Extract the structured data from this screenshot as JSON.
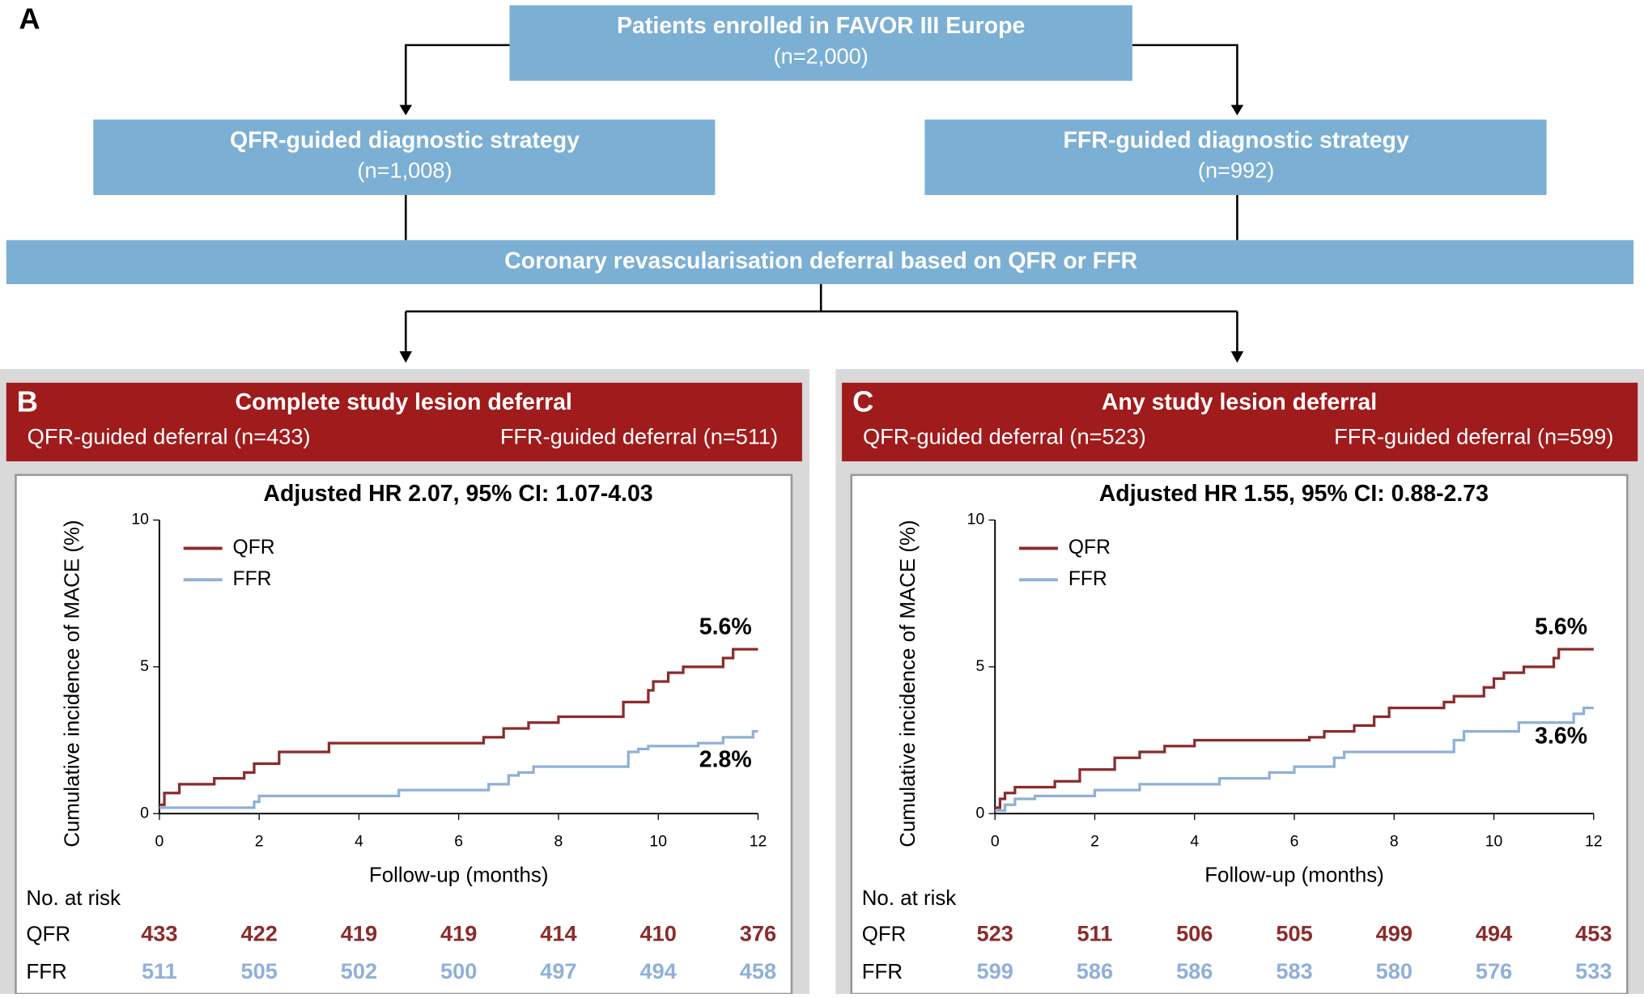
{
  "flowchart": {
    "label": "A",
    "root": {
      "title": "Patients enrolled in FAVOR III Europe",
      "subtitle": "(n=2,000)"
    },
    "left": {
      "title": "QFR-guided diagnostic strategy",
      "subtitle": "(n=1,008)"
    },
    "right": {
      "title": "FFR-guided diagnostic strategy",
      "subtitle": "(n=992)"
    },
    "merge": "Coronary revascularisation deferral based on QFR or FFR"
  },
  "chart_data": [
    {
      "type": "step",
      "panel": "B",
      "title": "Complete study lesion deferral",
      "subtitle_left": "QFR-guided deferral (n=433)",
      "subtitle_right": "FFR-guided deferral (n=511)",
      "annotation": "Adjusted HR 2.07, 95% CI: 1.07-4.03",
      "x_label": "Follow-up (months)",
      "y_label": "Cumulative incidence of MACE (%)",
      "xlim": [
        0,
        12
      ],
      "xticks": [
        0,
        2,
        4,
        6,
        8,
        10,
        12
      ],
      "ylim": [
        0,
        10
      ],
      "yticks": [
        0,
        5,
        10
      ],
      "legend": "upper left",
      "series": [
        {
          "name": "QFR",
          "color": "#8b2b2b",
          "end_label": "5.6%",
          "x": [
            0,
            0.1,
            0.4,
            1.1,
            1.7,
            1.9,
            2.4,
            3.4,
            6.5,
            6.9,
            7.4,
            8.0,
            9.3,
            9.8,
            9.9,
            10.2,
            10.5,
            11.3,
            11.5,
            12
          ],
          "values": [
            0.3,
            0.7,
            1.0,
            1.2,
            1.4,
            1.7,
            2.1,
            2.4,
            2.6,
            2.9,
            3.1,
            3.3,
            3.8,
            4.2,
            4.5,
            4.8,
            5.0,
            5.3,
            5.6,
            5.6
          ]
        },
        {
          "name": "FFR",
          "color": "#8fb0d8",
          "end_label": "2.8%",
          "x": [
            0,
            1.9,
            2.0,
            4.8,
            6.6,
            7.0,
            7.2,
            7.5,
            9.4,
            9.6,
            9.8,
            10.8,
            11.3,
            11.9,
            12
          ],
          "values": [
            0.2,
            0.4,
            0.6,
            0.8,
            1.0,
            1.3,
            1.4,
            1.6,
            2.1,
            2.2,
            2.3,
            2.4,
            2.6,
            2.8,
            2.8
          ]
        }
      ],
      "risk_table": {
        "title": "No. at risk",
        "rows": [
          {
            "name": "QFR",
            "values": [
              433,
              422,
              419,
              419,
              414,
              410,
              376
            ]
          },
          {
            "name": "FFR",
            "values": [
              511,
              505,
              502,
              500,
              497,
              494,
              458
            ]
          }
        ]
      }
    },
    {
      "type": "step",
      "panel": "C",
      "title": "Any study lesion deferral",
      "subtitle_left": "QFR-guided deferral (n=523)",
      "subtitle_right": "FFR-guided deferral (n=599)",
      "annotation": "Adjusted HR 1.55, 95% CI: 0.88-2.73",
      "x_label": "Follow-up (months)",
      "y_label": "Cumulative incidence of MACE (%)",
      "xlim": [
        0,
        12
      ],
      "xticks": [
        0,
        2,
        4,
        6,
        8,
        10,
        12
      ],
      "ylim": [
        0,
        10
      ],
      "yticks": [
        0,
        5,
        10
      ],
      "legend": "upper left",
      "series": [
        {
          "name": "QFR",
          "color": "#8b2b2b",
          "end_label": "5.6%",
          "x": [
            0,
            0.1,
            0.2,
            0.4,
            1.2,
            1.7,
            2.4,
            2.9,
            3.4,
            4.0,
            6.3,
            6.6,
            7.2,
            7.6,
            7.9,
            9.0,
            9.2,
            9.8,
            10.0,
            10.2,
            10.6,
            11.2,
            11.3,
            12
          ],
          "values": [
            0.2,
            0.5,
            0.7,
            0.9,
            1.1,
            1.5,
            1.9,
            2.1,
            2.3,
            2.5,
            2.6,
            2.8,
            3.0,
            3.3,
            3.6,
            3.8,
            4.0,
            4.3,
            4.6,
            4.8,
            5.0,
            5.3,
            5.6,
            5.6
          ]
        },
        {
          "name": "FFR",
          "color": "#8fb0d8",
          "end_label": "3.6%",
          "x": [
            0,
            0.2,
            0.4,
            0.8,
            2.0,
            2.9,
            4.5,
            5.5,
            6.0,
            6.8,
            7.0,
            9.2,
            9.4,
            10.5,
            11.6,
            11.8,
            12
          ],
          "values": [
            0.1,
            0.3,
            0.5,
            0.6,
            0.8,
            1.0,
            1.2,
            1.4,
            1.6,
            1.9,
            2.1,
            2.5,
            2.8,
            3.1,
            3.4,
            3.6,
            3.6
          ]
        }
      ],
      "risk_table": {
        "title": "No. at risk",
        "rows": [
          {
            "name": "QFR",
            "values": [
              523,
              511,
              506,
              505,
              499,
              494,
              453
            ]
          },
          {
            "name": "FFR",
            "values": [
              599,
              586,
              586,
              583,
              580,
              576,
              533
            ]
          }
        ]
      }
    }
  ]
}
